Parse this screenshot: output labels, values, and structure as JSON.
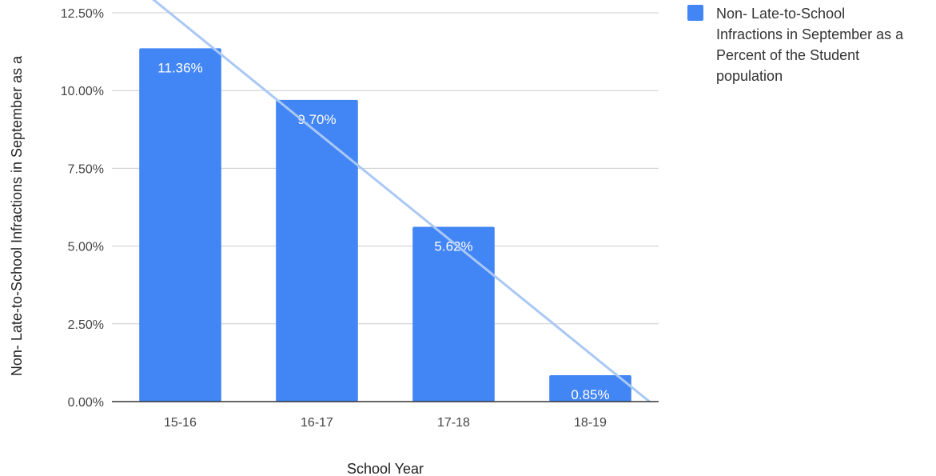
{
  "chart_data": {
    "type": "bar",
    "title": "",
    "xlabel": "School Year",
    "ylabel": "Non- Late-to-School Infractions in September as a",
    "categories": [
      "15-16",
      "16-17",
      "17-18",
      "18-19"
    ],
    "series": [
      {
        "name": "Non- Late-to-School Infractions in September as a Percent of the Student population",
        "values": [
          11.36,
          9.7,
          5.62,
          0.85
        ],
        "labels": [
          "11.36%",
          "9.70%",
          "5.62%",
          "0.85%"
        ],
        "color": "#4285f4"
      }
    ],
    "yticks": [
      "0.00%",
      "2.50%",
      "5.00%",
      "7.50%",
      "10.00%",
      "12.50%"
    ],
    "ytick_values": [
      0,
      2.5,
      5,
      7.5,
      10,
      12.5
    ],
    "ylim": [
      0,
      12.5
    ],
    "grid": true,
    "trendline": {
      "type": "linear",
      "color": "#a9c8f5"
    },
    "legend": {
      "position": "right",
      "lines": [
        "Non- Late-to-School",
        "Infractions in September as a",
        "Percent of the Student",
        "population"
      ]
    }
  }
}
